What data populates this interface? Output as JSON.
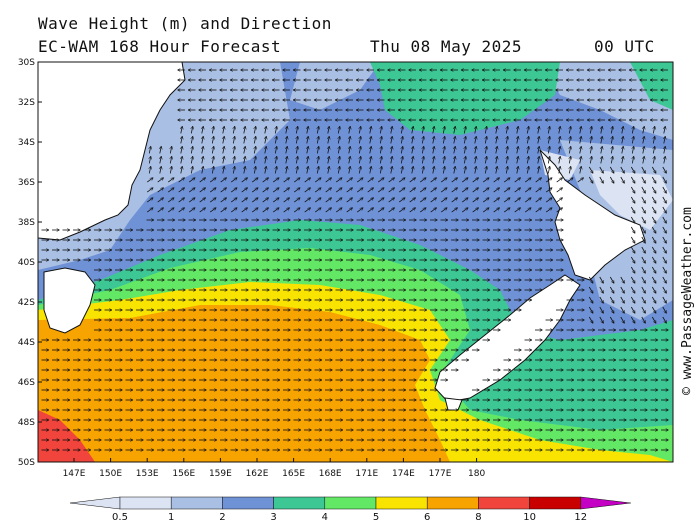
{
  "title": {
    "line1": "Wave Height (m) and Direction",
    "line2": "EC-WAM 168 Hour Forecast",
    "date": "Thu 08 May 2025",
    "time": "00 UTC"
  },
  "copyright": "© www.PassageWeather.com",
  "map": {
    "lat_labels": [
      "30S",
      "32S",
      "34S",
      "36S",
      "38S",
      "40S",
      "42S",
      "44S",
      "46S",
      "48S",
      "50S"
    ],
    "lon_labels": [
      "147E",
      "150E",
      "153E",
      "156E",
      "159E",
      "162E",
      "165E",
      "168E",
      "171E",
      "174E",
      "177E",
      "180"
    ],
    "colors": {
      "land": "#ffffff",
      "band_0_5": "#dce4f4",
      "band_1": "#a9bfe3",
      "band_2": "#6f91d6",
      "band_3": "#3dc795",
      "band_4": "#63e866",
      "band_5": "#f8e400",
      "band_6": "#f7a300",
      "band_8": "#f0443c",
      "band_10": "#c80000",
      "band_12": "#c400c4"
    }
  },
  "legend": {
    "labels": [
      "0.5",
      "1",
      "2",
      "3",
      "4",
      "5",
      "6",
      "8",
      "10",
      "12"
    ],
    "colors": [
      "#dce4f4",
      "#a9bfe3",
      "#6f91d6",
      "#3dc795",
      "#63e866",
      "#f8e400",
      "#f7a300",
      "#f0443c",
      "#c80000",
      "#c400c4"
    ]
  }
}
